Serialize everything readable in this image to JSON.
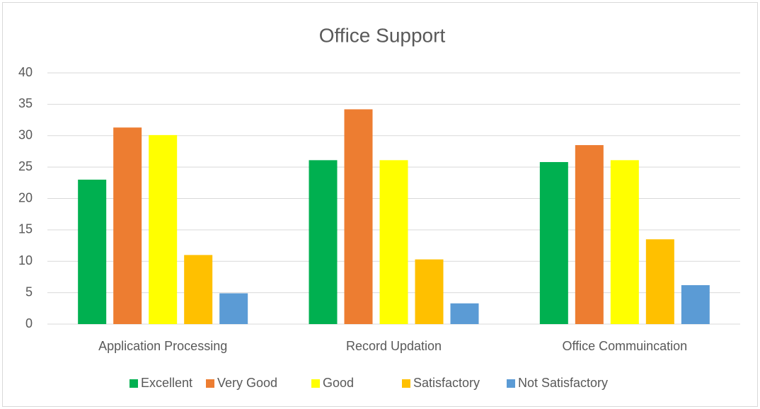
{
  "chart_data": {
    "type": "bar",
    "title": "Office Support",
    "categories": [
      "Application Processing",
      "Record Updation",
      "Office Commuincation"
    ],
    "series": [
      {
        "name": "Excellent",
        "color": "#00b050",
        "values": [
          23,
          26.1,
          25.8
        ]
      },
      {
        "name": "Very Good",
        "color": "#ed7d31",
        "values": [
          31.3,
          34.2,
          28.5
        ]
      },
      {
        "name": "Good",
        "color": "#ffff00",
        "values": [
          30.1,
          26.1,
          26.1
        ]
      },
      {
        "name": "Satisfactory",
        "color": "#ffc000",
        "values": [
          11,
          10.3,
          13.5
        ]
      },
      {
        "name": "Not Satisfactory",
        "color": "#5b9bd5",
        "values": [
          4.9,
          3.3,
          6.2
        ]
      }
    ],
    "ylim": [
      0,
      40
    ],
    "yticks": [
      0,
      5,
      10,
      15,
      20,
      25,
      30,
      35,
      40
    ],
    "grid": true,
    "legend": "bottom"
  }
}
